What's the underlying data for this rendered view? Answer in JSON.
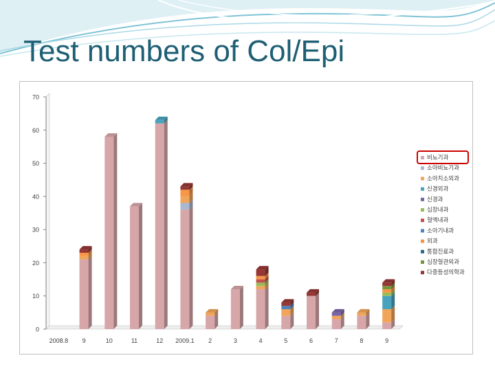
{
  "slide": {
    "title": "Test numbers of Col/Epi"
  },
  "colors": {
    "title": "#1e5f74",
    "header_wave": "#7fc3d6",
    "legend_highlight": "#cc0000"
  },
  "chart_data": {
    "type": "bar",
    "stacked": true,
    "title": "",
    "xlabel": "",
    "ylabel": "",
    "ylim": [
      0,
      70
    ],
    "yticks": [
      0,
      10,
      20,
      30,
      40,
      50,
      60,
      70
    ],
    "grid": false,
    "legend_position": "right",
    "categories": [
      "2008.8",
      "9",
      "10",
      "11",
      "12",
      "2009.1",
      "2",
      "3",
      "4",
      "5",
      "6",
      "7",
      "8",
      "9"
    ],
    "series": [
      {
        "name": "비뇨기과",
        "color": "#d7a6a9",
        "values": [
          0,
          21,
          58,
          37,
          62,
          36,
          4,
          12,
          12,
          4,
          10,
          3,
          4,
          2
        ]
      },
      {
        "name": "소아비뇨기과",
        "color": "#aab7d0",
        "values": [
          0,
          0,
          0,
          0,
          0,
          2,
          0,
          0,
          0,
          0,
          0,
          0,
          0,
          0
        ]
      },
      {
        "name": "소아치소외과",
        "color": "#f0a55a",
        "values": [
          0,
          1,
          0,
          0,
          0,
          2,
          1,
          0,
          1,
          2,
          0,
          1,
          1,
          4
        ]
      },
      {
        "name": "신경외과",
        "color": "#4aa3bd",
        "values": [
          0,
          0,
          0,
          0,
          1,
          0,
          0,
          0,
          0,
          0,
          0,
          0,
          0,
          4
        ]
      },
      {
        "name": "신경과",
        "color": "#7b64a6",
        "values": [
          0,
          0,
          0,
          0,
          0,
          0,
          0,
          0,
          0,
          0,
          0,
          1,
          0,
          0
        ]
      },
      {
        "name": "심장내과",
        "color": "#9bbb59",
        "values": [
          0,
          0,
          0,
          0,
          0,
          0,
          0,
          0,
          1,
          0,
          0,
          0,
          0,
          1
        ]
      },
      {
        "name": "혈액내과",
        "color": "#c0504d",
        "values": [
          0,
          0,
          0,
          0,
          0,
          0,
          0,
          0,
          1,
          0,
          0,
          0,
          0,
          0
        ]
      },
      {
        "name": "소아기내과",
        "color": "#4f81bd",
        "values": [
          0,
          0,
          0,
          0,
          0,
          0,
          0,
          0,
          0,
          1,
          0,
          0,
          0,
          0
        ]
      },
      {
        "name": "외과",
        "color": "#f79646",
        "values": [
          0,
          1,
          0,
          0,
          0,
          2,
          0,
          0,
          1,
          0,
          0,
          0,
          0,
          1
        ]
      },
      {
        "name": "통합진료과",
        "color": "#1f6e8c",
        "values": [
          0,
          0,
          0,
          0,
          0,
          0,
          0,
          0,
          0,
          0,
          0,
          0,
          0,
          0
        ]
      },
      {
        "name": "심장혈관외과",
        "color": "#77933c",
        "values": [
          0,
          0,
          0,
          0,
          0,
          0,
          0,
          0,
          0,
          0,
          0,
          0,
          0,
          1
        ]
      },
      {
        "name": "다중등성의학과",
        "color": "#953734",
        "values": [
          0,
          1,
          0,
          0,
          0,
          1,
          0,
          0,
          2,
          1,
          1,
          0,
          0,
          1
        ]
      }
    ]
  }
}
